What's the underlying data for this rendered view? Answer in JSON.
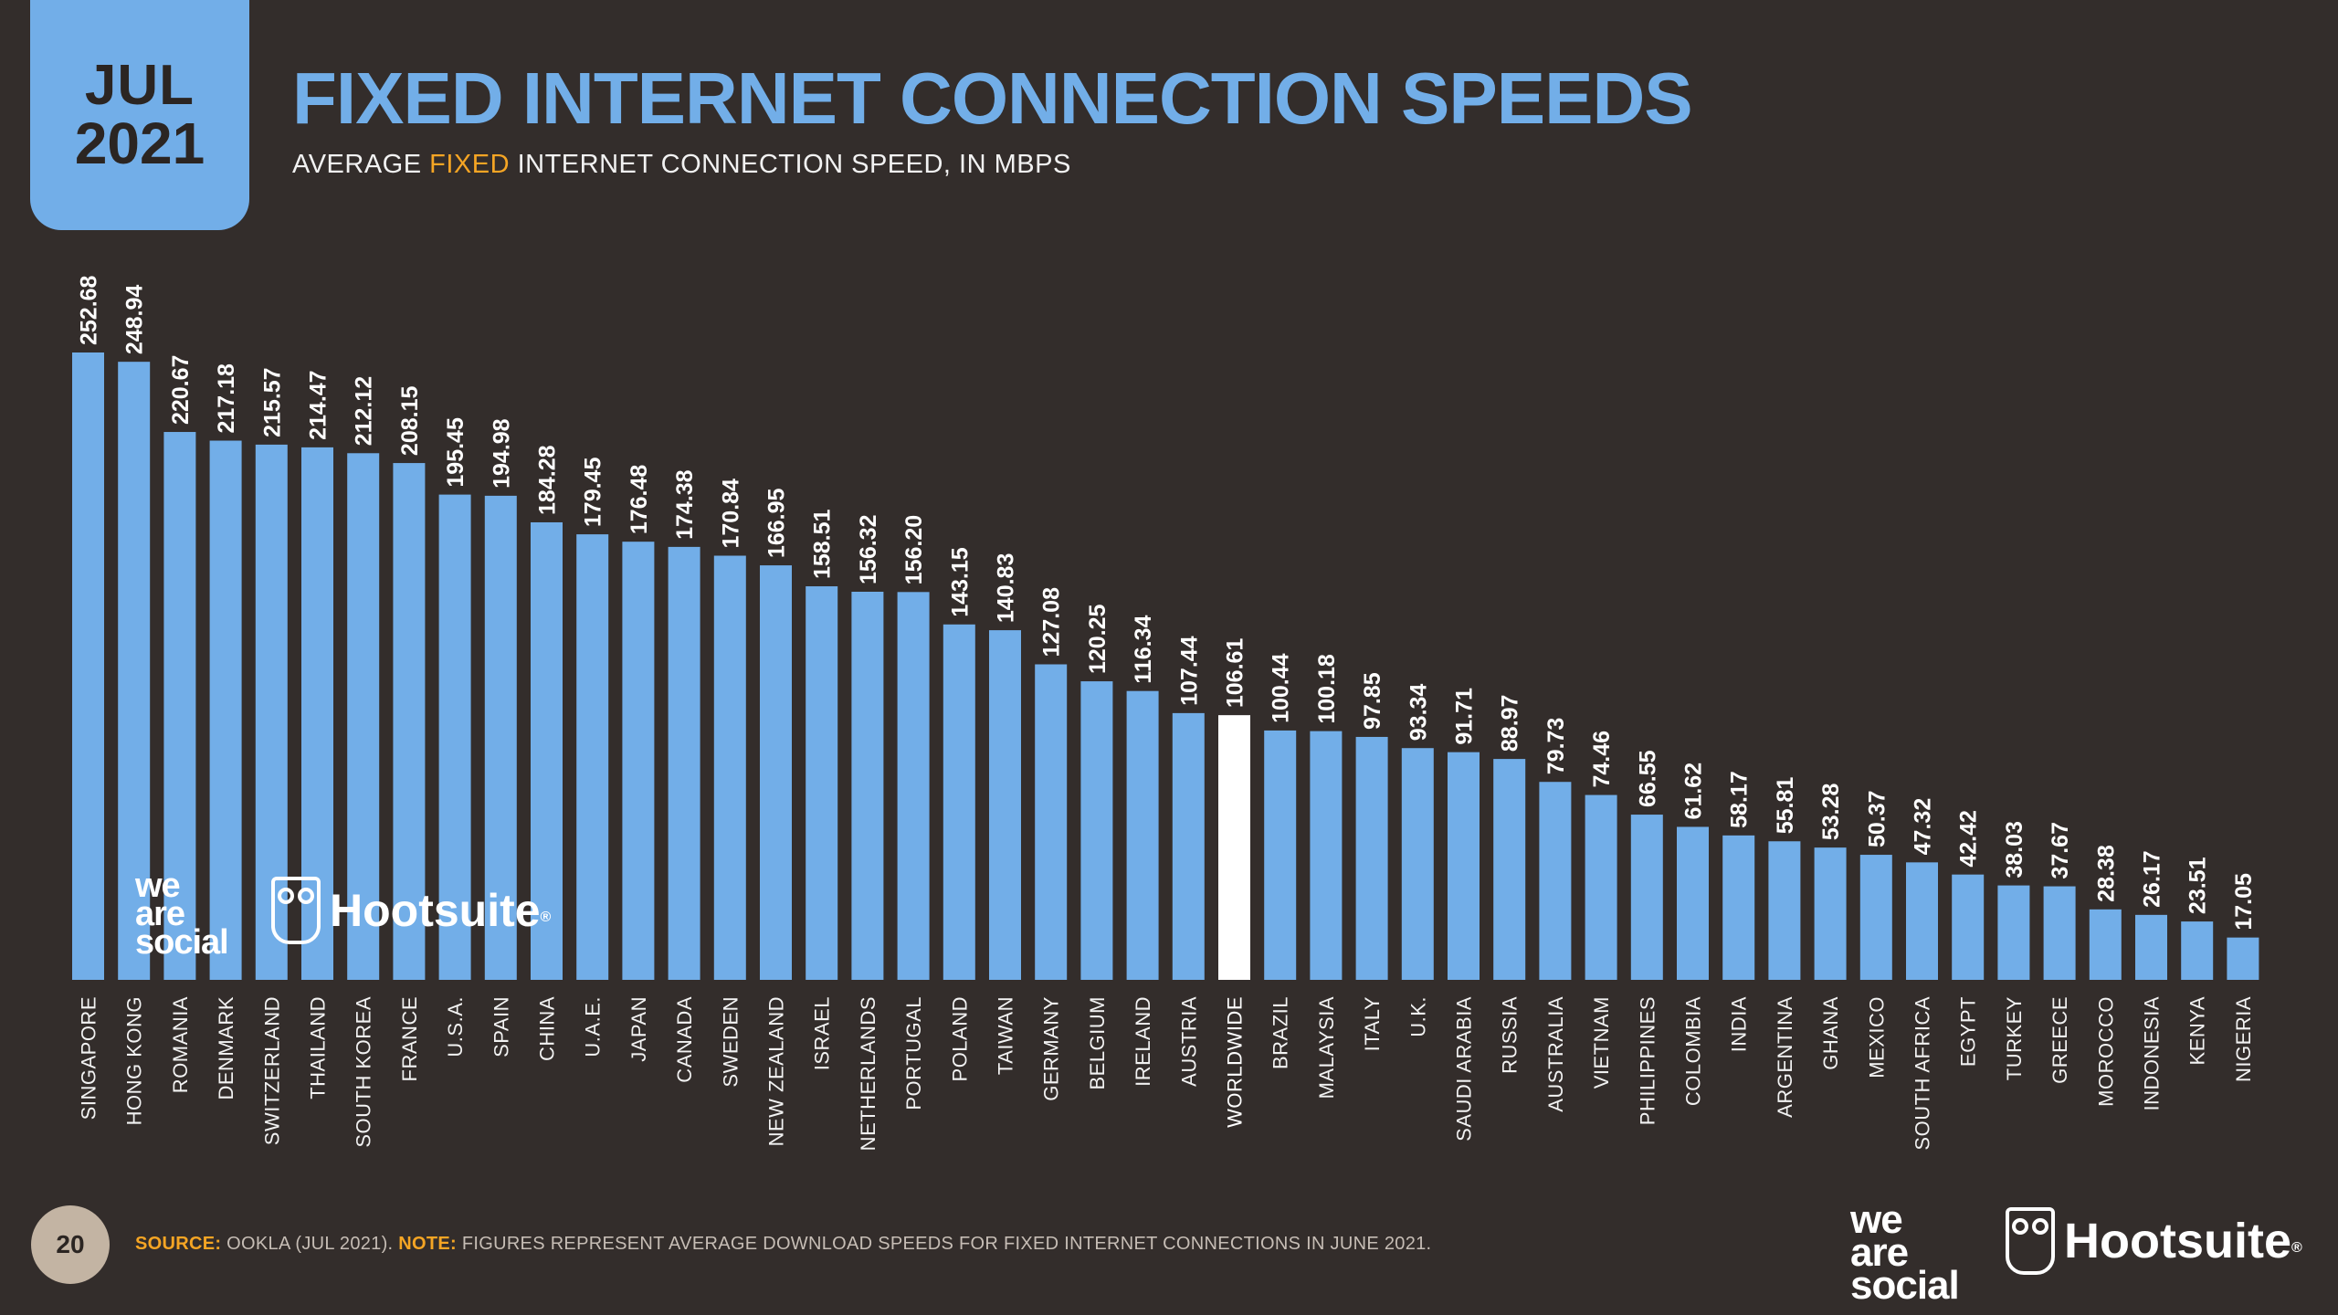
{
  "header": {
    "month": "JUL",
    "year": "2021",
    "title": "FIXED INTERNET CONNECTION SPEEDS",
    "subtitle_pre": "AVERAGE ",
    "subtitle_highlight": "FIXED",
    "subtitle_post": " INTERNET CONNECTION SPEED, IN MBPS"
  },
  "footer": {
    "page_number": "20",
    "source_label": "SOURCE:",
    "source_text": " OOKLA (JUL 2021). ",
    "note_label": "NOTE:",
    "note_text": " FIGURES REPRESENT AVERAGE DOWNLOAD SPEEDS FOR FIXED INTERNET CONNECTIONS IN JUNE 2021."
  },
  "logos": {
    "we_are_social": [
      "we",
      "are",
      "social"
    ],
    "hootsuite": "Hootsuite",
    "registered": "®"
  },
  "colors": {
    "background": "#332d2b",
    "bar": "#72aee8",
    "highlight_bar": "#ffffff",
    "accent": "#f5a524"
  },
  "chart_data": {
    "type": "bar",
    "title": "FIXED INTERNET CONNECTION SPEEDS",
    "subtitle": "AVERAGE FIXED INTERNET CONNECTION SPEED, IN MBPS",
    "categories": [
      "SINGAPORE",
      "HONG KONG",
      "ROMANIA",
      "DENMARK",
      "SWITZERLAND",
      "THAILAND",
      "SOUTH KOREA",
      "FRANCE",
      "U.S.A.",
      "SPAIN",
      "CHINA",
      "U.A.E.",
      "JAPAN",
      "CANADA",
      "SWEDEN",
      "NEW ZEALAND",
      "ISRAEL",
      "NETHERLANDS",
      "PORTUGAL",
      "POLAND",
      "TAIWAN",
      "GERMANY",
      "BELGIUM",
      "IRELAND",
      "AUSTRIA",
      "WORLDWIDE",
      "BRAZIL",
      "MALAYSIA",
      "ITALY",
      "U.K.",
      "SAUDI ARABIA",
      "RUSSIA",
      "AUSTRALIA",
      "VIETNAM",
      "PHILIPPINES",
      "COLOMBIA",
      "INDIA",
      "ARGENTINA",
      "GHANA",
      "MEXICO",
      "SOUTH AFRICA",
      "EGYPT",
      "TURKEY",
      "GREECE",
      "MOROCCO",
      "INDONESIA",
      "KENYA",
      "NIGERIA"
    ],
    "values": [
      252.68,
      248.94,
      220.67,
      217.18,
      215.57,
      214.47,
      212.12,
      208.15,
      195.45,
      194.98,
      184.28,
      179.45,
      176.48,
      174.38,
      170.84,
      166.95,
      158.51,
      156.32,
      156.2,
      143.15,
      140.83,
      127.08,
      120.25,
      116.34,
      107.44,
      106.61,
      100.44,
      100.18,
      97.85,
      93.34,
      91.71,
      88.97,
      79.73,
      74.46,
      66.55,
      61.62,
      58.17,
      55.81,
      53.28,
      50.37,
      47.32,
      42.42,
      38.03,
      37.67,
      28.38,
      26.17,
      23.51,
      17.05
    ],
    "value_labels": [
      "252.68",
      "248.94",
      "220.67",
      "217.18",
      "215.57",
      "214.47",
      "212.12",
      "208.15",
      "195.45",
      "194.98",
      "184.28",
      "179.45",
      "176.48",
      "174.38",
      "170.84",
      "166.95",
      "158.51",
      "156.32",
      "156.20",
      "143.15",
      "140.83",
      "127.08",
      "120.25",
      "116.34",
      "107.44",
      "106.61",
      "100.44",
      "100.18",
      "97.85",
      "93.34",
      "91.71",
      "88.97",
      "79.73",
      "74.46",
      "66.55",
      "61.62",
      "58.17",
      "55.81",
      "53.28",
      "50.37",
      "47.32",
      "42.42",
      "38.03",
      "37.67",
      "28.38",
      "26.17",
      "23.51",
      "17.05"
    ],
    "highlight_category": "WORLDWIDE",
    "ylim": [
      0,
      252.68
    ],
    "grid": false
  }
}
